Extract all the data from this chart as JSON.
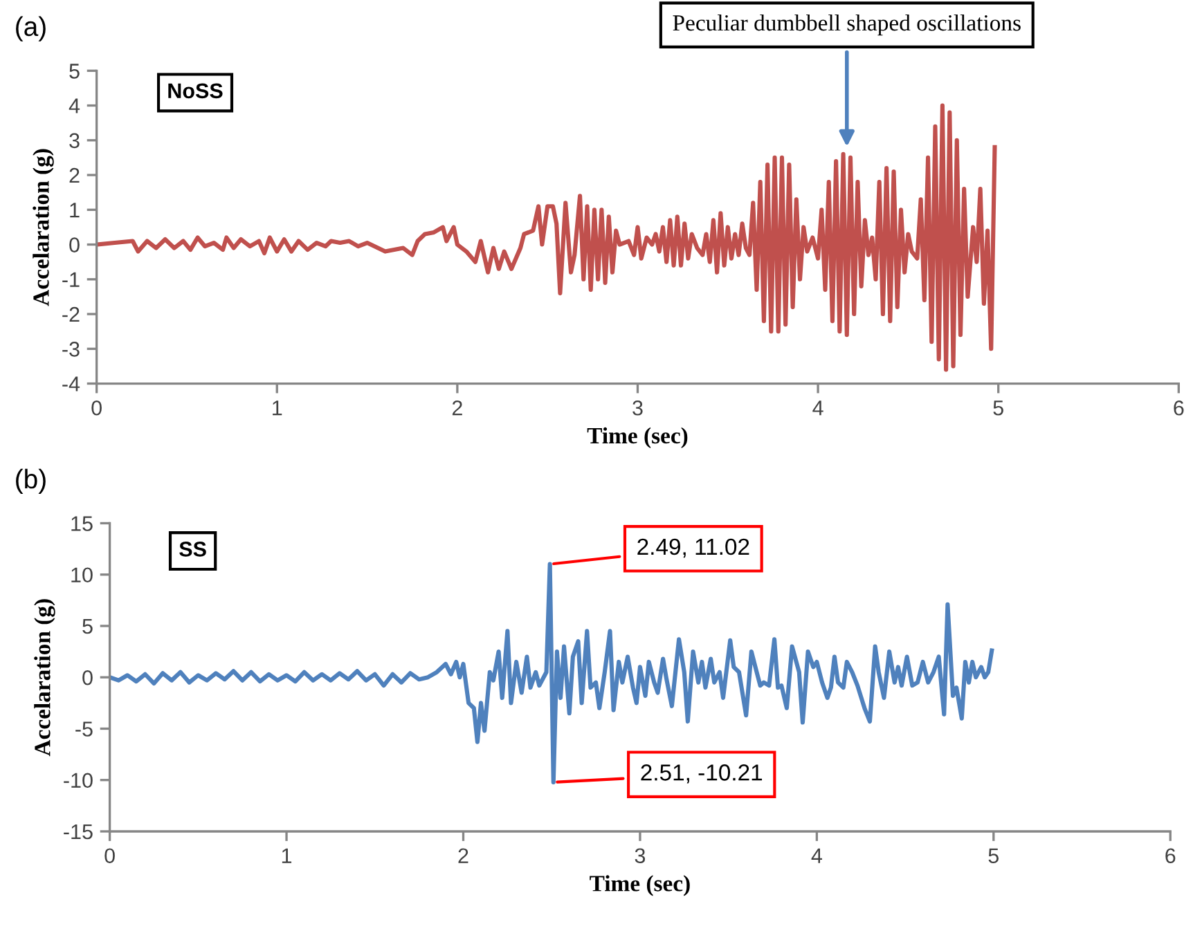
{
  "chart_data": [
    {
      "type": "line",
      "xlabel": "Time (sec)",
      "ylabel": "Accelaration (g)",
      "xlim": [
        0,
        6
      ],
      "xticks": [
        0,
        1,
        2,
        3,
        4,
        5,
        6
      ],
      "ylim": [
        -4,
        5
      ],
      "yticks": [
        -4,
        -3,
        -2,
        -1,
        0,
        1,
        2,
        3,
        4,
        5
      ],
      "grid": false,
      "marker": "none",
      "line_style": "solid",
      "annotations": [
        "(a)",
        "NoSS",
        {
          "text": "Peculiar dumbbell shaped oscillations",
          "x": 4.16,
          "y": 2.7
        }
      ],
      "series": [
        {
          "color": "#c0504d",
          "x": [
            0,
            0.1,
            0.2,
            0.23,
            0.28,
            0.33,
            0.38,
            0.43,
            0.48,
            0.52,
            0.56,
            0.6,
            0.65,
            0.7,
            0.72,
            0.76,
            0.8,
            0.85,
            0.9,
            0.93,
            0.96,
            1.0,
            1.04,
            1.08,
            1.12,
            1.17,
            1.22,
            1.27,
            1.3,
            1.35,
            1.4,
            1.45,
            1.5,
            1.6,
            1.7,
            1.75,
            1.78,
            1.82,
            1.87,
            1.92,
            1.94,
            1.98,
            2.0,
            2.05,
            2.1,
            2.13,
            2.17,
            2.2,
            2.23,
            2.26,
            2.3,
            2.35,
            2.37,
            2.42,
            2.45,
            2.47,
            2.5,
            2.53,
            2.55,
            2.57,
            2.6,
            2.63,
            2.65,
            2.68,
            2.7,
            2.72,
            2.74,
            2.76,
            2.78,
            2.8,
            2.82,
            2.84,
            2.86,
            2.88,
            2.9,
            2.95,
            2.98,
            3.0,
            3.02,
            3.05,
            3.08,
            3.1,
            3.12,
            3.14,
            3.16,
            3.18,
            3.2,
            3.22,
            3.24,
            3.26,
            3.28,
            3.3,
            3.33,
            3.36,
            3.38,
            3.4,
            3.42,
            3.44,
            3.46,
            3.48,
            3.5,
            3.52,
            3.54,
            3.56,
            3.58,
            3.6,
            3.62,
            3.64,
            3.66,
            3.68,
            3.7,
            3.72,
            3.74,
            3.76,
            3.78,
            3.8,
            3.82,
            3.84,
            3.86,
            3.88,
            3.9,
            3.92,
            3.94,
            3.97,
            4.0,
            4.02,
            4.04,
            4.06,
            4.08,
            4.1,
            4.12,
            4.14,
            4.16,
            4.18,
            4.2,
            4.22,
            4.24,
            4.26,
            4.28,
            4.3,
            4.32,
            4.34,
            4.36,
            4.38,
            4.4,
            4.42,
            4.44,
            4.46,
            4.48,
            4.5,
            4.52,
            4.55,
            4.57,
            4.59,
            4.61,
            4.63,
            4.65,
            4.67,
            4.69,
            4.71,
            4.73,
            4.75,
            4.77,
            4.79,
            4.81,
            4.83,
            4.86,
            4.88,
            4.9,
            4.92,
            4.94,
            4.96,
            4.98
          ],
          "values": [
            0,
            0.05,
            0.1,
            -0.2,
            0.1,
            -0.1,
            0.15,
            -0.1,
            0.1,
            -0.15,
            0.2,
            -0.05,
            0.05,
            -0.15,
            0.2,
            -0.1,
            0.15,
            -0.05,
            0.1,
            -0.25,
            0.2,
            -0.2,
            0.15,
            -0.2,
            0.1,
            -0.15,
            0.05,
            -0.05,
            0.1,
            0.05,
            0.1,
            -0.05,
            0.05,
            -0.2,
            -0.1,
            -0.3,
            0.1,
            0.3,
            0.35,
            0.5,
            0.1,
            0.5,
            0.0,
            -0.2,
            -0.5,
            0.1,
            -0.8,
            -0.1,
            -0.7,
            -0.2,
            -0.7,
            -0.1,
            0.3,
            0.4,
            1.1,
            0.0,
            1.1,
            1.1,
            0.6,
            -1.4,
            1.2,
            -0.8,
            -0.3,
            1.4,
            -1.0,
            1.1,
            -1.3,
            1.0,
            -1.0,
            1.0,
            -1.1,
            0.8,
            -0.8,
            0.4,
            0.0,
            0.1,
            -0.3,
            0.5,
            -0.4,
            0.2,
            0.0,
            0.3,
            -0.2,
            0.5,
            -0.5,
            0.7,
            -0.6,
            0.8,
            -0.6,
            0.6,
            -0.4,
            0.3,
            -0.1,
            -0.3,
            0.3,
            -0.5,
            0.7,
            -0.8,
            0.9,
            -0.6,
            0.5,
            -0.4,
            0.3,
            -0.3,
            0.6,
            -0.1,
            -0.3,
            1.2,
            -1.3,
            1.8,
            -2.2,
            2.3,
            -2.5,
            2.5,
            -2.5,
            2.5,
            -2.3,
            2.3,
            -1.8,
            1.3,
            -1.0,
            0.5,
            -0.2,
            0.2,
            -0.4,
            1.0,
            -1.3,
            1.8,
            -2.2,
            2.4,
            -2.5,
            2.6,
            -2.6,
            2.5,
            -2.0,
            1.8,
            -1.2,
            0.7,
            -0.3,
            0.2,
            -1.0,
            1.8,
            -2.0,
            2.2,
            -2.2,
            2.1,
            -1.8,
            1.0,
            -0.8,
            0.3,
            -0.2,
            -0.4,
            1.3,
            -1.6,
            2.5,
            -2.8,
            3.4,
            -3.3,
            4.0,
            -3.6,
            3.8,
            -3.5,
            3.0,
            -2.6,
            1.6,
            -1.5,
            0.5,
            -0.5,
            1.6,
            -1.7,
            0.4,
            -3.0,
            2.8
          ]
        }
      ]
    },
    {
      "type": "line",
      "xlabel": "Time (sec)",
      "ylabel": "Accelaration (g)",
      "xlim": [
        0,
        6
      ],
      "xticks": [
        0,
        1,
        2,
        3,
        4,
        5,
        6
      ],
      "ylim": [
        -15,
        15
      ],
      "yticks": [
        -15,
        -10,
        -5,
        0,
        5,
        10,
        15
      ],
      "grid": false,
      "marker": "none",
      "line_style": "solid",
      "annotations": [
        "(b)",
        "SS",
        {
          "text": "2.49, 11.02",
          "x": 2.49,
          "y": 11.02
        },
        {
          "text": "2.51, -10.21",
          "x": 2.51,
          "y": -10.21
        }
      ],
      "series": [
        {
          "color": "#4f81bd",
          "x": [
            0,
            0.05,
            0.1,
            0.15,
            0.2,
            0.25,
            0.3,
            0.35,
            0.4,
            0.45,
            0.5,
            0.55,
            0.6,
            0.65,
            0.7,
            0.75,
            0.8,
            0.85,
            0.9,
            0.95,
            1.0,
            1.05,
            1.1,
            1.15,
            1.2,
            1.25,
            1.3,
            1.35,
            1.4,
            1.45,
            1.5,
            1.55,
            1.6,
            1.65,
            1.7,
            1.75,
            1.8,
            1.85,
            1.9,
            1.93,
            1.96,
            1.98,
            2.0,
            2.03,
            2.06,
            2.08,
            2.1,
            2.12,
            2.15,
            2.17,
            2.2,
            2.22,
            2.25,
            2.27,
            2.3,
            2.33,
            2.36,
            2.38,
            2.41,
            2.43,
            2.47,
            2.49,
            2.51,
            2.53,
            2.55,
            2.57,
            2.6,
            2.62,
            2.65,
            2.67,
            2.7,
            2.72,
            2.75,
            2.77,
            2.8,
            2.83,
            2.85,
            2.88,
            2.9,
            2.93,
            2.96,
            2.98,
            3.0,
            3.03,
            3.05,
            3.08,
            3.1,
            3.13,
            3.15,
            3.18,
            3.22,
            3.25,
            3.27,
            3.3,
            3.33,
            3.35,
            3.37,
            3.4,
            3.42,
            3.45,
            3.47,
            3.51,
            3.53,
            3.56,
            3.6,
            3.63,
            3.66,
            3.68,
            3.7,
            3.73,
            3.76,
            3.78,
            3.8,
            3.83,
            3.86,
            3.9,
            3.92,
            3.95,
            3.98,
            4.0,
            4.03,
            4.06,
            4.08,
            4.1,
            4.12,
            4.15,
            4.17,
            4.2,
            4.23,
            4.27,
            4.3,
            4.33,
            4.35,
            4.38,
            4.41,
            4.44,
            4.46,
            4.48,
            4.51,
            4.54,
            4.57,
            4.6,
            4.63,
            4.66,
            4.69,
            4.72,
            4.74,
            4.77,
            4.79,
            4.82,
            4.84,
            4.86,
            4.88,
            4.9,
            4.93,
            4.95,
            4.97,
            4.99
          ],
          "values": [
            0,
            -0.3,
            0.2,
            -0.4,
            0.3,
            -0.6,
            0.4,
            -0.3,
            0.5,
            -0.5,
            0.2,
            -0.3,
            0.4,
            -0.2,
            0.6,
            -0.3,
            0.5,
            -0.4,
            0.3,
            -0.3,
            0.2,
            -0.4,
            0.5,
            -0.3,
            0.3,
            -0.3,
            0.4,
            -0.2,
            0.6,
            -0.3,
            0.3,
            -0.8,
            0.3,
            -0.5,
            0.4,
            -0.2,
            0.0,
            0.5,
            1.3,
            0.3,
            1.5,
            0.0,
            1.3,
            -2.5,
            -3.0,
            -6.3,
            -2.5,
            -5.2,
            0.5,
            -0.3,
            2.5,
            -2.0,
            4.5,
            -2.5,
            1.5,
            -1.5,
            2.0,
            -1.0,
            0.5,
            -0.8,
            0.5,
            11.02,
            -10.21,
            2.5,
            -2.0,
            3.0,
            -3.5,
            2.0,
            3.5,
            -2.5,
            4.5,
            -1.0,
            -0.5,
            -3.0,
            0.5,
            4.5,
            -3.2,
            1.5,
            -0.5,
            2.0,
            -1.0,
            -2.5,
            1.0,
            -1.8,
            1.5,
            -0.5,
            -1.5,
            1.8,
            -0.2,
            -2.8,
            3.7,
            0.5,
            -4.3,
            2.5,
            -0.5,
            1.5,
            -1.0,
            1.8,
            -0.5,
            0.5,
            -2.0,
            3.6,
            1.0,
            0.5,
            -3.7,
            2.5,
            0.5,
            -0.8,
            -0.5,
            -0.8,
            3.7,
            -1.0,
            -0.8,
            -3.0,
            3.0,
            0.5,
            -4.4,
            2.5,
            1.0,
            1.5,
            -0.5,
            -2.0,
            -1.0,
            2.0,
            -0.5,
            -1.0,
            1.5,
            0.5,
            -0.8,
            -3.0,
            -4.3,
            3.0,
            0.5,
            -2.0,
            2.5,
            -0.5,
            1.0,
            -0.8,
            2.0,
            -0.8,
            -0.5,
            1.5,
            -0.5,
            0.5,
            2.0,
            -3.6,
            7.1,
            -1.8,
            -1.0,
            -4.0,
            1.5,
            -0.5,
            1.5,
            0.0,
            1.0,
            0.0,
            0.5,
            2.6
          ]
        }
      ]
    }
  ]
}
